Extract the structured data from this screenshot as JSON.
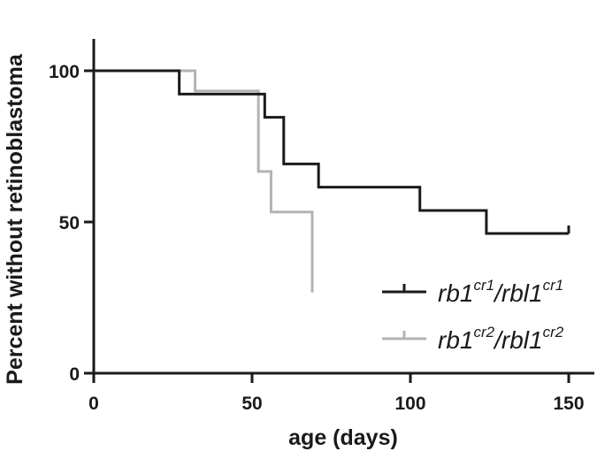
{
  "chart_data": {
    "type": "line",
    "subtype": "kaplan-meier-step",
    "xlabel": "age (days)",
    "ylabel": "Percent without retinoblastoma",
    "xlim": [
      0,
      170
    ],
    "ylim": [
      0,
      110
    ],
    "xticks": [
      0,
      50,
      100,
      150
    ],
    "yticks": [
      0,
      50,
      100
    ],
    "grid": false,
    "legend_position": "bottom-right",
    "series": [
      {
        "name": "rb1cr1/rbl1cr1",
        "legend_parts": {
          "a": "rb1",
          "a_sup": "cr1",
          "b": "/rbl1",
          "b_sup": "cr1"
        },
        "color": "#1a1a1a",
        "x": [
          0,
          27,
          54,
          60,
          71,
          103,
          124,
          150
        ],
        "y": [
          100,
          92.3,
          84.6,
          69.2,
          61.5,
          53.8,
          46.2,
          46.2
        ],
        "censored": [
          {
            "x": 150,
            "y": 46.2
          }
        ]
      },
      {
        "name": "rb1cr2/rbl1cr2",
        "legend_parts": {
          "a": "rb1",
          "a_sup": "cr2",
          "b": "/rbl1",
          "b_sup": "cr2"
        },
        "color": "#b3b3b3",
        "x": [
          0,
          32,
          52,
          56,
          69
        ],
        "y": [
          100,
          93.3,
          66.7,
          53.3,
          26.7
        ],
        "censored": []
      }
    ]
  }
}
